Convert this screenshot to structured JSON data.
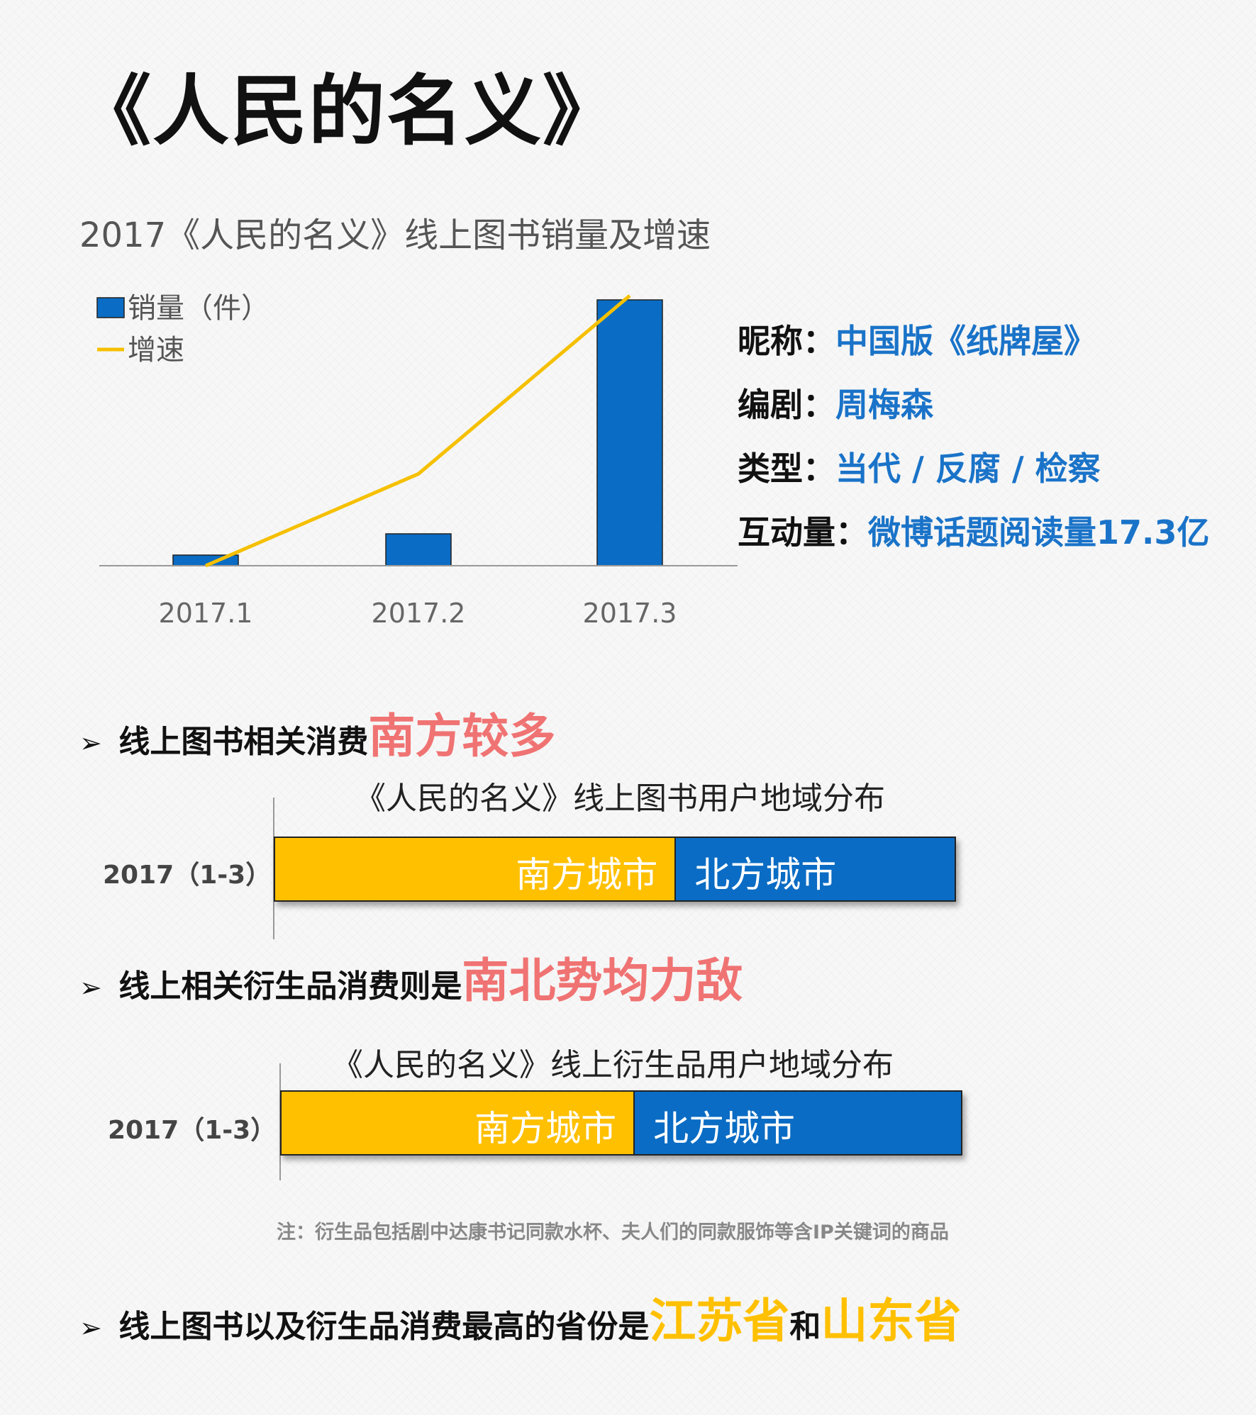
{
  "title": "《人民的名义》",
  "chart1": {
    "chart_data": {
      "type": "bar",
      "title": "2017《人民的名义》线上图书销量及增速",
      "categories": [
        "2017.1",
        "2017.2",
        "2017.3"
      ],
      "series": [
        {
          "name": "销量（件）",
          "type": "bar",
          "values": [
            4,
            12,
            100
          ]
        },
        {
          "name": "增速",
          "type": "line",
          "values": [
            0,
            34,
            100
          ]
        }
      ],
      "ylim": [
        0,
        100
      ],
      "grid": false,
      "legend": "top-left",
      "colors": {
        "bar": "#0a6cc4",
        "line": "#f5c000"
      }
    }
  },
  "info": [
    {
      "key": "昵称：",
      "value": "中国版《纸牌屋》"
    },
    {
      "key": "编剧：",
      "value": "周梅森"
    },
    {
      "key": "类型：",
      "value": "当代 / 反腐 / 检察"
    },
    {
      "key": "互动量：",
      "value": "微博话题阅读量17.3亿"
    }
  ],
  "bullets": [
    {
      "text": "线上图书相关消费",
      "highlight": "南方较多",
      "arrow": "➢"
    },
    {
      "text": "线上相关衍生品消费则是",
      "highlight": "南北势均力敌",
      "arrow": "➢"
    },
    {
      "text": "线上图书以及衍生品消费最高的省份是",
      "highlight1": "江苏省",
      "mid": "和",
      "highlight2": "山东省",
      "arrow": "➢"
    }
  ],
  "chart2": {
    "chart_data": {
      "type": "bar",
      "title": "《人民的名义》线上图书用户地域分布",
      "categories": [
        "2017（1-3）"
      ],
      "series": [
        {
          "name": "南方城市",
          "values": [
            59
          ]
        },
        {
          "name": "北方城市",
          "values": [
            41
          ]
        }
      ],
      "stacked": true,
      "orientation": "horizontal"
    }
  },
  "chart3": {
    "chart_data": {
      "type": "bar",
      "title": "《人民的名义》线上衍生品用户地域分布",
      "categories": [
        "2017（1-3）"
      ],
      "series": [
        {
          "name": "南方城市",
          "values": [
            52
          ]
        },
        {
          "name": "北方城市",
          "values": [
            48
          ]
        }
      ],
      "stacked": true,
      "orientation": "horizontal"
    }
  },
  "note": "注：衍生品包括剧中达康书记同款水杯、夫人们的同款服饰等含IP关键词的商品",
  "colors": {
    "south": "#ffc000",
    "north": "#0a6cc4",
    "accent_blue": "#1a73c8",
    "accent_red": "#f07373"
  }
}
